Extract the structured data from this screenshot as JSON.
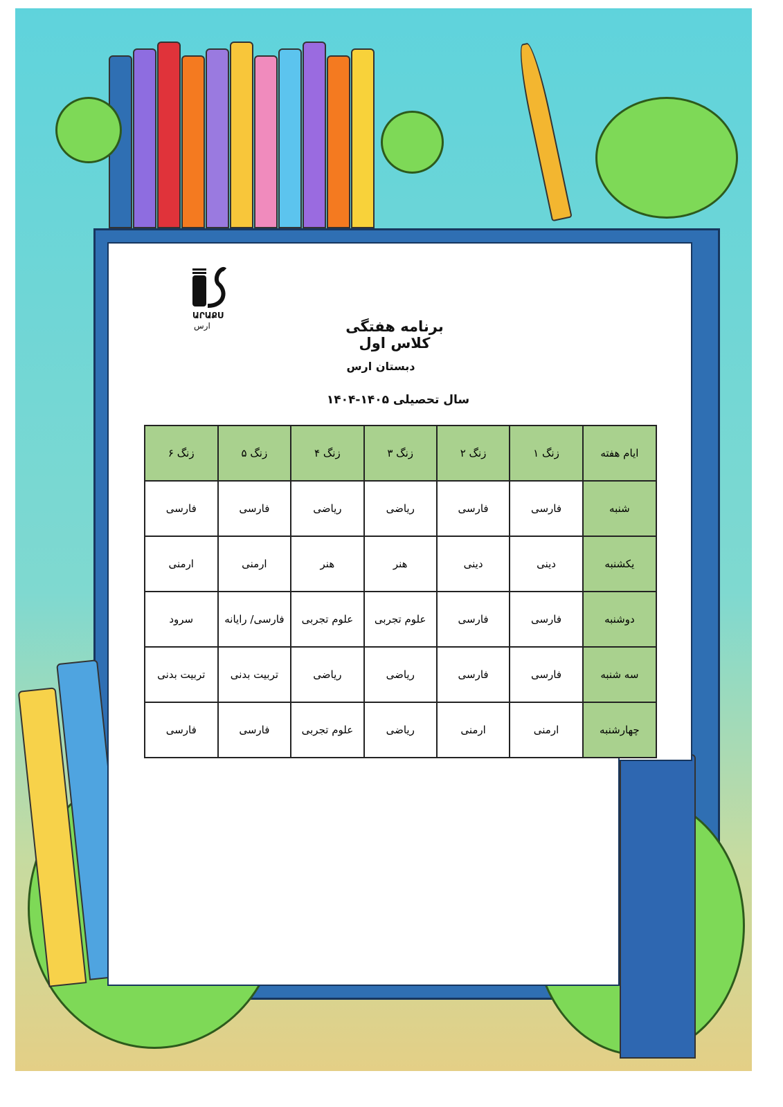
{
  "logo": {
    "latin": "ԱՐԱՔՍ",
    "persian": "ارس"
  },
  "title": "برنامه هفتگی کلاس اول",
  "school": "دبستان ارس",
  "year": "سال تحصیلی ۱۴۰۵-۱۴۰۴",
  "colors": {
    "header_bg": "#a9d18e",
    "frame": "#2f6fb3"
  },
  "table": {
    "headers": [
      "ایام هفته",
      "زنگ ۱",
      "زنگ ۲",
      "زنگ ۳",
      "زنگ ۴",
      "زنگ ۵",
      "زنگ ۶"
    ],
    "rows": [
      {
        "day": "شنبه",
        "cells": [
          "فارسی",
          "فارسی",
          "ریاضی",
          "ریاضی",
          "فارسی",
          "فارسی"
        ]
      },
      {
        "day": "یکشنبه",
        "cells": [
          "دینی",
          "دینی",
          "هنر",
          "هنر",
          "ارمنی",
          "ارمنی"
        ]
      },
      {
        "day": "دوشنبه",
        "cells": [
          "فارسی",
          "فارسی",
          "علوم تجربی",
          "علوم تجربی",
          "فارسی/ رایانه",
          "سرود"
        ]
      },
      {
        "day": "سه شنبه",
        "cells": [
          "فارسی",
          "فارسی",
          "ریاضی",
          "ریاضی",
          "تربیت بدنی",
          "تربیت بدنی"
        ]
      },
      {
        "day": "چهارشنبه",
        "cells": [
          "ارمنی",
          "ارمنی",
          "ریاضی",
          "علوم تجربی",
          "فارسی",
          "فارسی"
        ]
      }
    ]
  }
}
